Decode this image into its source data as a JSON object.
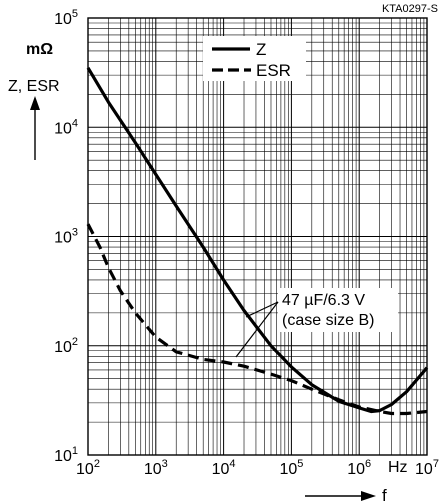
{
  "chart_data": {
    "type": "line",
    "figure_id": "KTA0297-S",
    "x_scale": "log",
    "y_scale": "log",
    "xlim": [
      100,
      10000000
    ],
    "ylim": [
      10,
      100000
    ],
    "xlabel": "f",
    "x_unit": "Hz",
    "ylabel": "Z, ESR",
    "y_unit": "mΩ",
    "x_ticks": [
      {
        "base": "10",
        "exp": "2"
      },
      {
        "base": "10",
        "exp": "3"
      },
      {
        "base": "10",
        "exp": "4"
      },
      {
        "base": "10",
        "exp": "5"
      },
      {
        "base": "10",
        "exp": "6"
      },
      {
        "base": "10",
        "exp": "7"
      }
    ],
    "y_ticks": [
      {
        "base": "10",
        "exp": "1"
      },
      {
        "base": "10",
        "exp": "2"
      },
      {
        "base": "10",
        "exp": "3"
      },
      {
        "base": "10",
        "exp": "4"
      },
      {
        "base": "10",
        "exp": "5"
      }
    ],
    "grid": true,
    "legend_position": "top-right",
    "annotation": {
      "line1": "47 µF/6.3 V",
      "line2": "(case size B)"
    },
    "series": [
      {
        "name": "Z",
        "style": "solid",
        "points": [
          [
            100,
            35000
          ],
          [
            200,
            17000
          ],
          [
            500,
            7200
          ],
          [
            1000,
            3700
          ],
          [
            2000,
            1900
          ],
          [
            5000,
            800
          ],
          [
            10000,
            400
          ],
          [
            20000,
            210
          ],
          [
            50000,
            100
          ],
          [
            100000,
            64
          ],
          [
            200000,
            44
          ],
          [
            500000,
            31
          ],
          [
            1000000,
            27
          ],
          [
            1500000,
            25
          ],
          [
            2000000,
            25.5
          ],
          [
            3000000,
            29
          ],
          [
            5000000,
            38
          ],
          [
            10000000,
            63
          ]
        ]
      },
      {
        "name": "ESR",
        "style": "dashed",
        "points": [
          [
            100,
            1300
          ],
          [
            150,
            800
          ],
          [
            200,
            520
          ],
          [
            300,
            320
          ],
          [
            500,
            200
          ],
          [
            1000,
            120
          ],
          [
            2000,
            88
          ],
          [
            5000,
            75
          ],
          [
            10000,
            71
          ],
          [
            20000,
            65
          ],
          [
            50000,
            55
          ],
          [
            100000,
            48
          ],
          [
            200000,
            40
          ],
          [
            500000,
            32
          ],
          [
            1000000,
            27.5
          ],
          [
            2000000,
            25
          ],
          [
            3000000,
            24
          ],
          [
            5000000,
            24
          ],
          [
            10000000,
            25
          ]
        ]
      }
    ]
  }
}
